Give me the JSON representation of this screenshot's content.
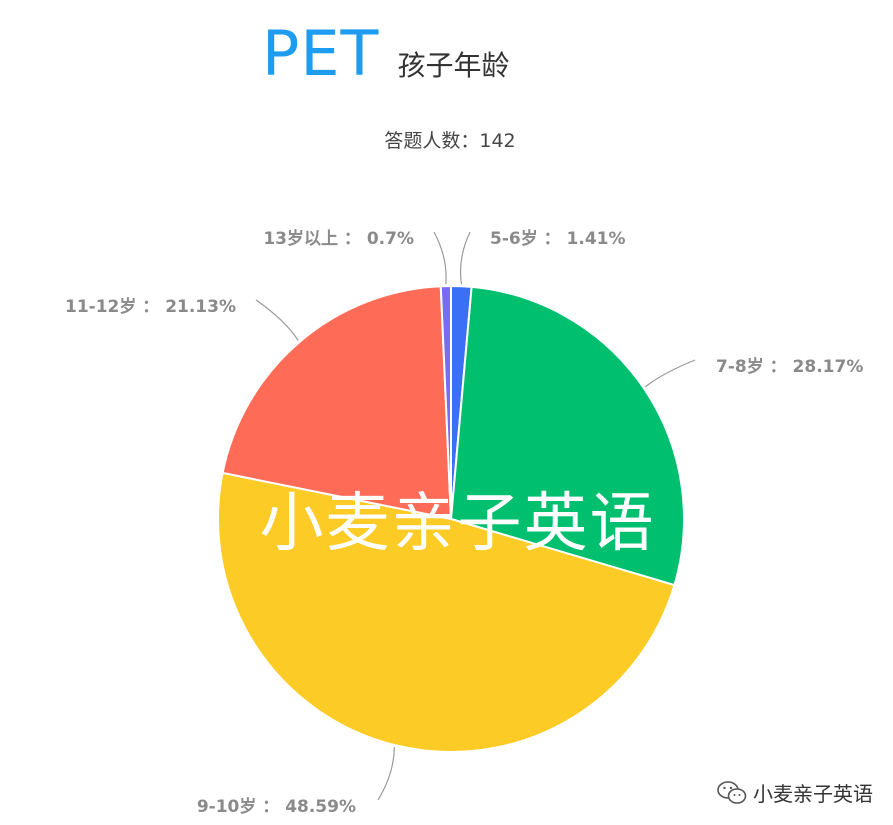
{
  "title": {
    "main": "PET",
    "sub": "孩子年龄"
  },
  "respondents_text": "答题人数：142",
  "watermark_text": "小麦亲子英语",
  "brand": {
    "icon": "wechat-icon",
    "text": "小麦亲子英语"
  },
  "chart_data": {
    "type": "pie",
    "total": 142,
    "slices": [
      {
        "label": "5-6岁",
        "value": 1.41,
        "display": "5-6岁 ： 1.41%",
        "color": "#3b6ff5"
      },
      {
        "label": "7-8岁",
        "value": 28.17,
        "display": "7-8岁 ： 28.17%",
        "color": "#00bf6f"
      },
      {
        "label": "9-10岁",
        "value": 48.59,
        "display": "9-10岁 ： 48.59%",
        "color": "#fdcb26"
      },
      {
        "label": "11-12岁",
        "value": 21.13,
        "display": "11-12岁 ： 21.13%",
        "color": "#fe6c58"
      },
      {
        "label": "13岁以上",
        "value": 0.7,
        "display": "13岁以上 ： 0.7%",
        "color": "#7a6cf0"
      }
    ],
    "start": "top",
    "direction": "clockwise",
    "label_color": "#8a8a8a"
  }
}
